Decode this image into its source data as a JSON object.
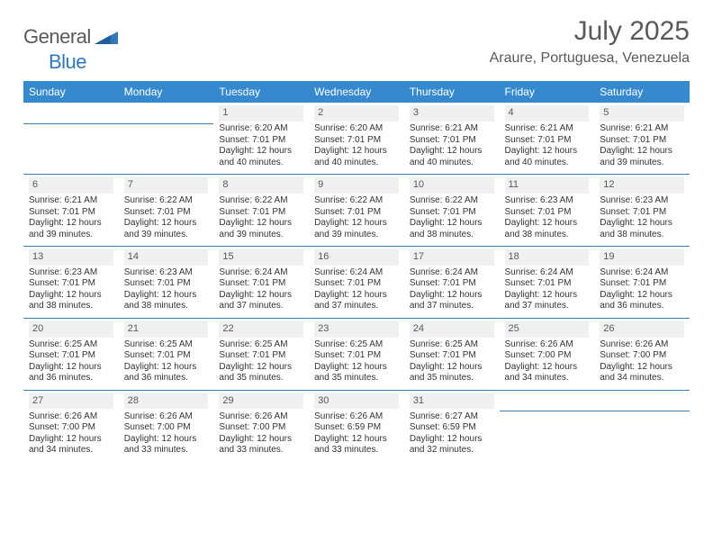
{
  "logo": {
    "word1": "General",
    "word2": "Blue",
    "word1_color": "#58595b",
    "word2_color": "#2f78bd"
  },
  "header": {
    "title": "July 2025",
    "location": "Araure, Portuguesa, Venezuela"
  },
  "style": {
    "header_bg": "#3789ce",
    "header_fg": "#ffffff",
    "daynum_bg": "#eef0f1",
    "daynum_fg": "#58595b",
    "rule_color": "#3b7fb8",
    "page_bg": "#ffffff",
    "text_color": "#333333",
    "title_fontsize": 30,
    "location_fontsize": 16,
    "th_fontsize": 12,
    "cell_fontsize": 10
  },
  "weekdays": [
    "Sunday",
    "Monday",
    "Tuesday",
    "Wednesday",
    "Thursday",
    "Friday",
    "Saturday"
  ],
  "weeks": [
    [
      null,
      null,
      {
        "n": "1",
        "sunrise": "Sunrise: 6:20 AM",
        "sunset": "Sunset: 7:01 PM",
        "d1": "Daylight: 12 hours",
        "d2": "and 40 minutes."
      },
      {
        "n": "2",
        "sunrise": "Sunrise: 6:20 AM",
        "sunset": "Sunset: 7:01 PM",
        "d1": "Daylight: 12 hours",
        "d2": "and 40 minutes."
      },
      {
        "n": "3",
        "sunrise": "Sunrise: 6:21 AM",
        "sunset": "Sunset: 7:01 PM",
        "d1": "Daylight: 12 hours",
        "d2": "and 40 minutes."
      },
      {
        "n": "4",
        "sunrise": "Sunrise: 6:21 AM",
        "sunset": "Sunset: 7:01 PM",
        "d1": "Daylight: 12 hours",
        "d2": "and 40 minutes."
      },
      {
        "n": "5",
        "sunrise": "Sunrise: 6:21 AM",
        "sunset": "Sunset: 7:01 PM",
        "d1": "Daylight: 12 hours",
        "d2": "and 39 minutes."
      }
    ],
    [
      {
        "n": "6",
        "sunrise": "Sunrise: 6:21 AM",
        "sunset": "Sunset: 7:01 PM",
        "d1": "Daylight: 12 hours",
        "d2": "and 39 minutes."
      },
      {
        "n": "7",
        "sunrise": "Sunrise: 6:22 AM",
        "sunset": "Sunset: 7:01 PM",
        "d1": "Daylight: 12 hours",
        "d2": "and 39 minutes."
      },
      {
        "n": "8",
        "sunrise": "Sunrise: 6:22 AM",
        "sunset": "Sunset: 7:01 PM",
        "d1": "Daylight: 12 hours",
        "d2": "and 39 minutes."
      },
      {
        "n": "9",
        "sunrise": "Sunrise: 6:22 AM",
        "sunset": "Sunset: 7:01 PM",
        "d1": "Daylight: 12 hours",
        "d2": "and 39 minutes."
      },
      {
        "n": "10",
        "sunrise": "Sunrise: 6:22 AM",
        "sunset": "Sunset: 7:01 PM",
        "d1": "Daylight: 12 hours",
        "d2": "and 38 minutes."
      },
      {
        "n": "11",
        "sunrise": "Sunrise: 6:23 AM",
        "sunset": "Sunset: 7:01 PM",
        "d1": "Daylight: 12 hours",
        "d2": "and 38 minutes."
      },
      {
        "n": "12",
        "sunrise": "Sunrise: 6:23 AM",
        "sunset": "Sunset: 7:01 PM",
        "d1": "Daylight: 12 hours",
        "d2": "and 38 minutes."
      }
    ],
    [
      {
        "n": "13",
        "sunrise": "Sunrise: 6:23 AM",
        "sunset": "Sunset: 7:01 PM",
        "d1": "Daylight: 12 hours",
        "d2": "and 38 minutes."
      },
      {
        "n": "14",
        "sunrise": "Sunrise: 6:23 AM",
        "sunset": "Sunset: 7:01 PM",
        "d1": "Daylight: 12 hours",
        "d2": "and 38 minutes."
      },
      {
        "n": "15",
        "sunrise": "Sunrise: 6:24 AM",
        "sunset": "Sunset: 7:01 PM",
        "d1": "Daylight: 12 hours",
        "d2": "and 37 minutes."
      },
      {
        "n": "16",
        "sunrise": "Sunrise: 6:24 AM",
        "sunset": "Sunset: 7:01 PM",
        "d1": "Daylight: 12 hours",
        "d2": "and 37 minutes."
      },
      {
        "n": "17",
        "sunrise": "Sunrise: 6:24 AM",
        "sunset": "Sunset: 7:01 PM",
        "d1": "Daylight: 12 hours",
        "d2": "and 37 minutes."
      },
      {
        "n": "18",
        "sunrise": "Sunrise: 6:24 AM",
        "sunset": "Sunset: 7:01 PM",
        "d1": "Daylight: 12 hours",
        "d2": "and 37 minutes."
      },
      {
        "n": "19",
        "sunrise": "Sunrise: 6:24 AM",
        "sunset": "Sunset: 7:01 PM",
        "d1": "Daylight: 12 hours",
        "d2": "and 36 minutes."
      }
    ],
    [
      {
        "n": "20",
        "sunrise": "Sunrise: 6:25 AM",
        "sunset": "Sunset: 7:01 PM",
        "d1": "Daylight: 12 hours",
        "d2": "and 36 minutes."
      },
      {
        "n": "21",
        "sunrise": "Sunrise: 6:25 AM",
        "sunset": "Sunset: 7:01 PM",
        "d1": "Daylight: 12 hours",
        "d2": "and 36 minutes."
      },
      {
        "n": "22",
        "sunrise": "Sunrise: 6:25 AM",
        "sunset": "Sunset: 7:01 PM",
        "d1": "Daylight: 12 hours",
        "d2": "and 35 minutes."
      },
      {
        "n": "23",
        "sunrise": "Sunrise: 6:25 AM",
        "sunset": "Sunset: 7:01 PM",
        "d1": "Daylight: 12 hours",
        "d2": "and 35 minutes."
      },
      {
        "n": "24",
        "sunrise": "Sunrise: 6:25 AM",
        "sunset": "Sunset: 7:01 PM",
        "d1": "Daylight: 12 hours",
        "d2": "and 35 minutes."
      },
      {
        "n": "25",
        "sunrise": "Sunrise: 6:26 AM",
        "sunset": "Sunset: 7:00 PM",
        "d1": "Daylight: 12 hours",
        "d2": "and 34 minutes."
      },
      {
        "n": "26",
        "sunrise": "Sunrise: 6:26 AM",
        "sunset": "Sunset: 7:00 PM",
        "d1": "Daylight: 12 hours",
        "d2": "and 34 minutes."
      }
    ],
    [
      {
        "n": "27",
        "sunrise": "Sunrise: 6:26 AM",
        "sunset": "Sunset: 7:00 PM",
        "d1": "Daylight: 12 hours",
        "d2": "and 34 minutes."
      },
      {
        "n": "28",
        "sunrise": "Sunrise: 6:26 AM",
        "sunset": "Sunset: 7:00 PM",
        "d1": "Daylight: 12 hours",
        "d2": "and 33 minutes."
      },
      {
        "n": "29",
        "sunrise": "Sunrise: 6:26 AM",
        "sunset": "Sunset: 7:00 PM",
        "d1": "Daylight: 12 hours",
        "d2": "and 33 minutes."
      },
      {
        "n": "30",
        "sunrise": "Sunrise: 6:26 AM",
        "sunset": "Sunset: 6:59 PM",
        "d1": "Daylight: 12 hours",
        "d2": "and 33 minutes."
      },
      {
        "n": "31",
        "sunrise": "Sunrise: 6:27 AM",
        "sunset": "Sunset: 6:59 PM",
        "d1": "Daylight: 12 hours",
        "d2": "and 32 minutes."
      },
      null,
      null
    ]
  ]
}
